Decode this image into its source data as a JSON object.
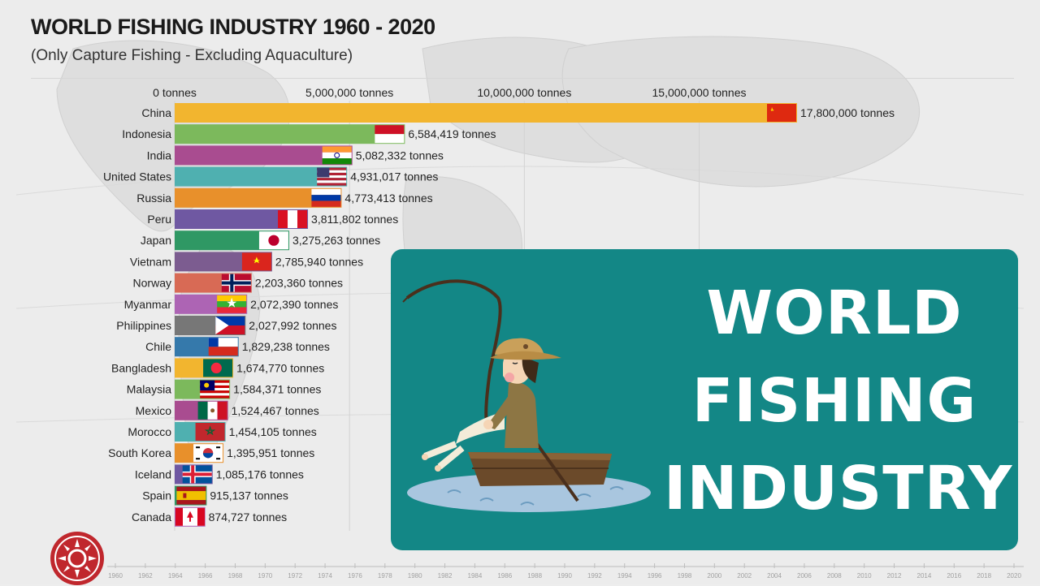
{
  "header": {
    "title": "WORLD FISHING INDUSTRY 1960 - 2020",
    "subtitle": "(Only Capture Fishing - Excluding Aquaculture)"
  },
  "overlay": {
    "line1": "WORLD",
    "line2": "FISHING",
    "line3": "INDUSTRY",
    "color": "#138786"
  },
  "timeline": {
    "years": [
      "1960",
      "1962",
      "1964",
      "1966",
      "1968",
      "1970",
      "1972",
      "1974",
      "1976",
      "1978",
      "1980",
      "1982",
      "1984",
      "1986",
      "1988",
      "1990",
      "1992",
      "1994",
      "1996",
      "1998",
      "2000",
      "2002",
      "2004",
      "2006",
      "2008",
      "2010",
      "2012",
      "2014",
      "2016",
      "2018",
      "2020"
    ]
  },
  "chart_data": {
    "type": "bar",
    "orientation": "horizontal",
    "title": "WORLD FISHING INDUSTRY 1960 - 2020",
    "subtitle": "(Only Capture Fishing - Excluding Aquaculture)",
    "axis_ticks": [
      "0 tonnes",
      "5,000,000 tonnes",
      "10,000,000 tonnes",
      "15,000,000 tonnes"
    ],
    "axis_tick_values": [
      0,
      5000000,
      10000000,
      15000000
    ],
    "xlim": [
      0,
      17800000
    ],
    "grid": true,
    "unit_suffix": " tonnes",
    "categories": [
      "China",
      "Indonesia",
      "India",
      "United States",
      "Russia",
      "Peru",
      "Japan",
      "Vietnam",
      "Norway",
      "Myanmar",
      "Philippines",
      "Chile",
      "Bangladesh",
      "Malaysia",
      "Mexico",
      "Morocco",
      "South Korea",
      "Iceland",
      "Spain",
      "Canada"
    ],
    "values": [
      17800000,
      6584419,
      5082332,
      4931017,
      4773413,
      3811802,
      3275263,
      2785940,
      2203360,
      2072390,
      2027992,
      1829238,
      1674770,
      1584371,
      1524467,
      1454105,
      1395951,
      1085176,
      915137,
      874727
    ],
    "value_labels": [
      "17,800,000 tonnes",
      "6,584,419 tonnes",
      "5,082,332 tonnes",
      "4,931,017 tonnes",
      "4,773,413 tonnes",
      "3,811,802 tonnes",
      "3,275,263 tonnes",
      "2,785,940 tonnes",
      "2,203,360 tonnes",
      "2,072,390 tonnes",
      "2,027,992 tonnes",
      "1,829,238 tonnes",
      "1,674,770 tonnes",
      "1,584,371 tonnes",
      "1,524,467 tonnes",
      "1,454,105 tonnes",
      "1,395,951 tonnes",
      "1,085,176 tonnes",
      "915,137 tonnes",
      "874,727 tonnes"
    ],
    "colors": [
      "#f2b52f",
      "#7cb95c",
      "#a94c90",
      "#4fb0b0",
      "#e8902b",
      "#6f58a2",
      "#2f9864",
      "#7c5c90",
      "#d86a55",
      "#ad64b4",
      "#777777",
      "#3579ab",
      "#f2b52f",
      "#7cb95c",
      "#a94c90",
      "#4fb0b0",
      "#e8902b",
      "#6f58a2",
      "#2f9864",
      "#ad64b4"
    ],
    "flags": [
      "china-flag",
      "indonesia-flag",
      "india-flag",
      "usa-flag",
      "russia-flag",
      "peru-flag",
      "japan-flag",
      "vietnam-flag",
      "norway-flag",
      "myanmar-flag",
      "philippines-flag",
      "chile-flag",
      "bangladesh-flag",
      "malaysia-flag",
      "mexico-flag",
      "morocco-flag",
      "south-korea-flag",
      "iceland-flag",
      "spain-flag",
      "canada-flag"
    ]
  }
}
